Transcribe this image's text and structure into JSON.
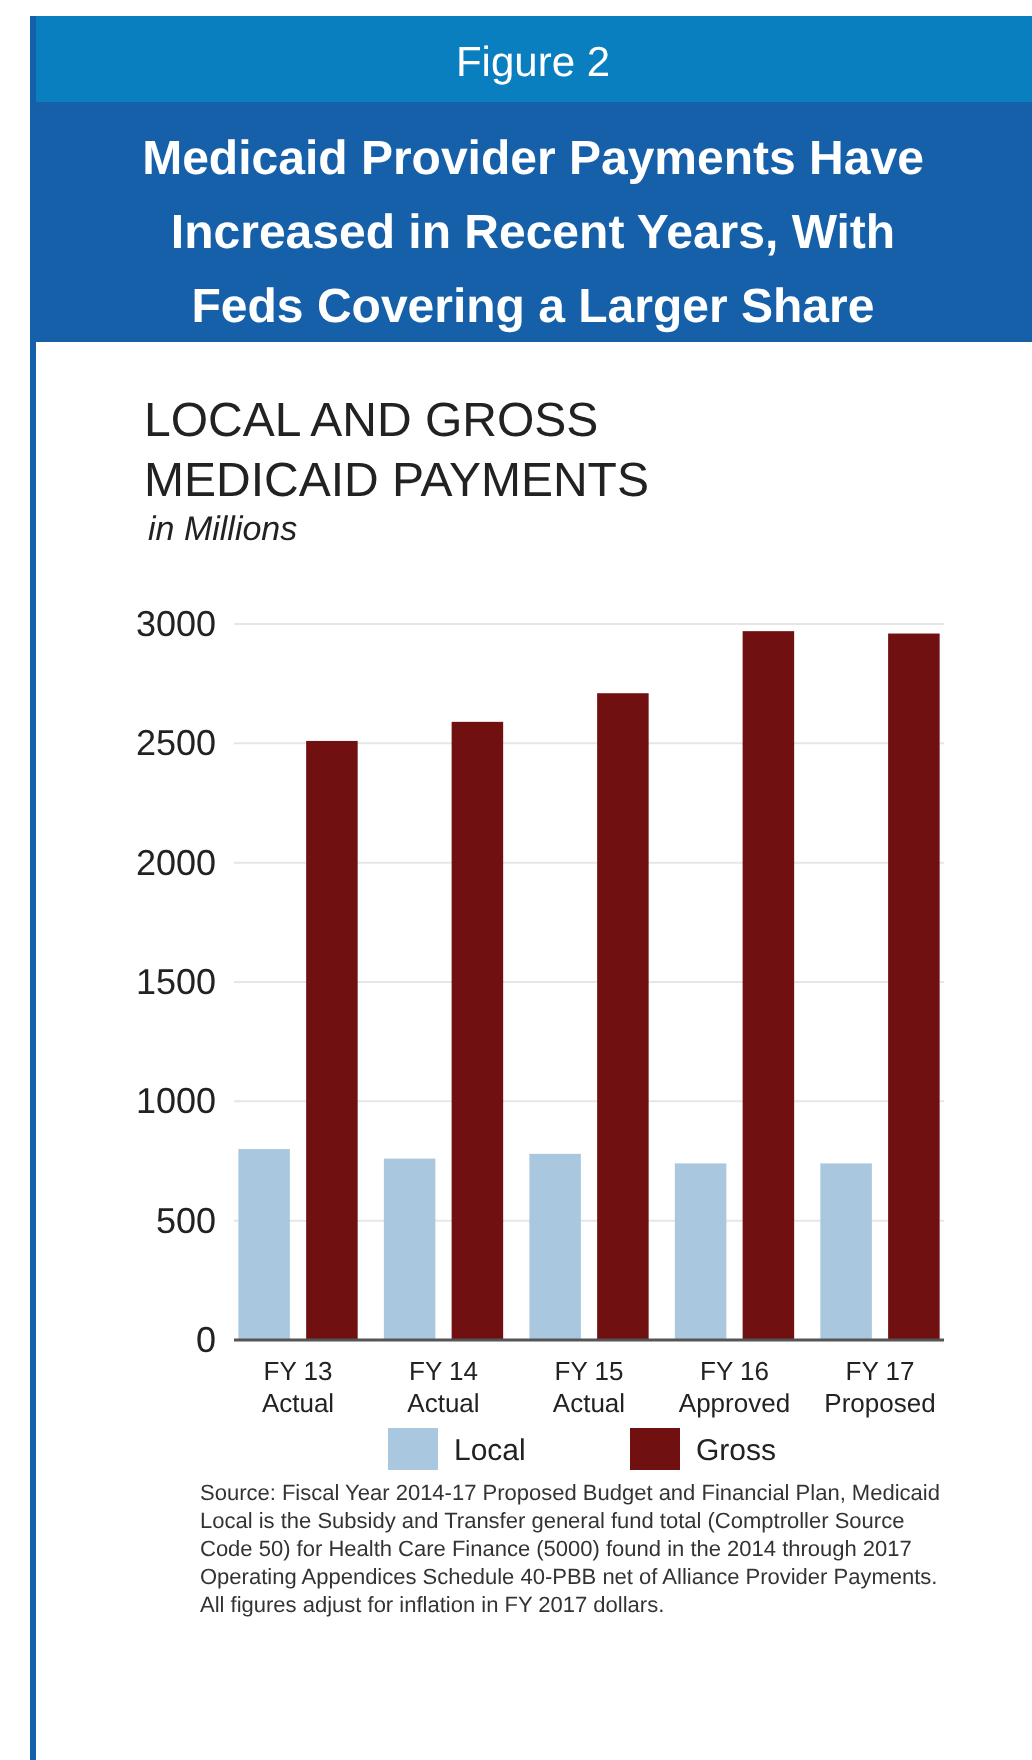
{
  "chart_data": {
    "type": "bar",
    "title": "Medicaid Provider Payments Have Increased in Recent Years, With Feds Covering a Larger Share",
    "subtitle": "LOCAL AND GROSS MEDICAID PAYMENTS",
    "ylabel": "in Millions",
    "annotations": [
      "Figure 2",
      "Source: Fiscal Year 2014-17 Proposed Budget and Financial Plan, Medicaid Local is the Subsidy and Transfer general fund total (Comptroller Source Code 50) for Health Care Finance (5000) found in the 2014 through 2017 Operating Appendices Schedule 40-PBB net of Alliance Provider Payments. All figures adjust for inflation in FY 2017 dollars."
    ],
    "categories": [
      "FY 13\nActual",
      "FY 14\nActual",
      "FY 15\nActual",
      "FY 16\nApproved",
      "FY 17\nProposed"
    ],
    "series": [
      {
        "name": "Local",
        "color": "#a9c8e0",
        "values": [
          800,
          760,
          780,
          740,
          740
        ]
      },
      {
        "name": "Gross",
        "color": "#701010",
        "values": [
          2510,
          2590,
          2710,
          2970,
          2960
        ]
      }
    ],
    "ylim": [
      0,
      3000
    ],
    "yticks": [
      0,
      500,
      1000,
      1500,
      2000,
      2500,
      3000
    ],
    "grid": "y",
    "legend": "bottom"
  }
}
